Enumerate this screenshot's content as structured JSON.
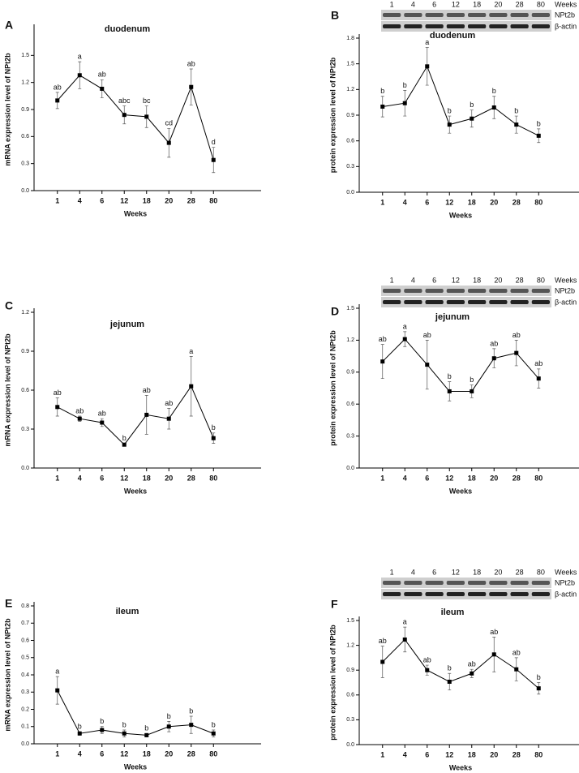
{
  "chart_data": [
    {
      "type": "line",
      "panel": "A",
      "title": "duodenum",
      "x_label": "Weeks",
      "y_label": "mRNA expression level of NPt2b",
      "categories": [
        "1",
        "4",
        "6",
        "12",
        "18",
        "20",
        "28",
        "80"
      ],
      "values": [
        1.0,
        1.28,
        1.13,
        0.84,
        0.82,
        0.53,
        1.15,
        0.34
      ],
      "errors": [
        0.09,
        0.15,
        0.1,
        0.1,
        0.12,
        0.16,
        0.2,
        0.14
      ],
      "annotations": [
        "ab",
        "a",
        "ab",
        "abc",
        "bc",
        "cd",
        "ab",
        "d"
      ],
      "color": "#000000",
      "ylim": [
        0,
        1.8
      ],
      "yticks": [
        {
          "value": 0,
          "label": "0.0"
        },
        0.3,
        0.6,
        0.9,
        1.2,
        1.5
      ]
    },
    {
      "type": "line",
      "panel": "B",
      "title": "duodenum",
      "x_label": "Weeks",
      "y_label": "protein expression level of NPt2b",
      "blot": {
        "lanes": [
          "1",
          "4",
          "6",
          "12",
          "18",
          "20",
          "28",
          "80"
        ],
        "lanes_label": "Weeks",
        "rows": [
          "NPt2b",
          "β-actin"
        ]
      },
      "categories": [
        "1",
        "4",
        "6",
        "12",
        "18",
        "20",
        "28",
        "80"
      ],
      "values": [
        1.0,
        1.04,
        1.47,
        0.79,
        0.86,
        0.99,
        0.79,
        0.66
      ],
      "errors": [
        0.12,
        0.15,
        0.22,
        0.1,
        0.1,
        0.13,
        0.1,
        0.08
      ],
      "annotations": [
        "b",
        "b",
        "a",
        "b",
        "b",
        "b",
        "b",
        "b"
      ],
      "color": "#000000",
      "ylim": [
        0,
        1.8
      ],
      "yticks": [
        {
          "value": 0,
          "label": "0.0"
        },
        0.3,
        0.6,
        0.9,
        1.2,
        1.5,
        1.8
      ]
    },
    {
      "type": "line",
      "panel": "C",
      "title": "jejunum",
      "x_label": "Weeks",
      "y_label": "mRNA expression level of NPt2b",
      "categories": [
        "1",
        "4",
        "6",
        "12",
        "18",
        "20",
        "28",
        "80"
      ],
      "values": [
        0.47,
        0.38,
        0.35,
        0.18,
        0.41,
        0.38,
        0.63,
        0.23
      ],
      "errors": [
        0.07,
        0.02,
        0.03,
        0.01,
        0.15,
        0.08,
        0.23,
        0.04
      ],
      "annotations": [
        "ab",
        "ab",
        "ab",
        "b",
        "ab",
        "ab",
        "a",
        "b"
      ],
      "color": "#000000",
      "ylim": [
        0,
        1.2
      ],
      "yticks": [
        {
          "value": 0,
          "label": "0.0"
        },
        0.3,
        0.6,
        0.9,
        1.2
      ]
    },
    {
      "type": "line",
      "panel": "D",
      "title": "jejunum",
      "x_label": "Weeks",
      "y_label": "protein expression level of NPt2b",
      "blot": {
        "lanes": [
          "1",
          "4",
          "6",
          "12",
          "18",
          "20",
          "28",
          "80"
        ],
        "lanes_label": "Weeks",
        "rows": [
          "NPt2b",
          "β-actin"
        ]
      },
      "categories": [
        "1",
        "4",
        "6",
        "12",
        "18",
        "20",
        "28",
        "80"
      ],
      "values": [
        1.0,
        1.21,
        0.97,
        0.72,
        0.72,
        1.03,
        1.08,
        0.84
      ],
      "errors": [
        0.16,
        0.07,
        0.23,
        0.09,
        0.06,
        0.09,
        0.12,
        0.09
      ],
      "annotations": [
        "ab",
        "a",
        "ab",
        "b",
        "b",
        "ab",
        "ab",
        "ab"
      ],
      "color": "#000000",
      "ylim": [
        0,
        1.5
      ],
      "yticks": [
        {
          "value": 0,
          "label": "0.0"
        },
        0.3,
        0.6,
        0.9,
        1.2,
        1.5
      ]
    },
    {
      "type": "line",
      "panel": "E",
      "title": "ileum",
      "x_label": "Weeks",
      "y_label": "mRNA expression level of NPt2b",
      "categories": [
        "1",
        "4",
        "6",
        "12",
        "18",
        "20",
        "28",
        "80"
      ],
      "values": [
        0.31,
        0.06,
        0.08,
        0.06,
        0.05,
        0.1,
        0.11,
        0.06
      ],
      "errors": [
        0.08,
        0.01,
        0.02,
        0.02,
        0.01,
        0.03,
        0.05,
        0.02
      ],
      "annotations": [
        "a",
        "b",
        "b",
        "b",
        "b",
        "b",
        "b",
        "b"
      ],
      "color": "#000000",
      "ylim": [
        0,
        0.8
      ],
      "yticks": [
        {
          "value": 0,
          "label": "0.0"
        },
        0.1,
        0.2,
        0.3,
        0.4,
        0.5,
        0.6,
        0.7,
        0.8
      ]
    },
    {
      "type": "line",
      "panel": "F",
      "title": "ileum",
      "x_label": "Weeks",
      "y_label": "protein expression level of NPt2b",
      "blot": {
        "lanes": [
          "1",
          "4",
          "6",
          "12",
          "18",
          "20",
          "28",
          "80"
        ],
        "lanes_label": "Weeks",
        "rows": [
          "NPt2b",
          "β-actin"
        ]
      },
      "categories": [
        "1",
        "4",
        "6",
        "12",
        "18",
        "20",
        "28",
        "80"
      ],
      "values": [
        1.0,
        1.27,
        0.9,
        0.76,
        0.86,
        1.09,
        0.91,
        0.68
      ],
      "errors": [
        0.19,
        0.15,
        0.06,
        0.1,
        0.05,
        0.21,
        0.14,
        0.07
      ],
      "annotations": [
        "ab",
        "a",
        "ab",
        "b",
        "ab",
        "ab",
        "ab",
        "b"
      ],
      "color": "#000000",
      "ylim": [
        0,
        1.5
      ],
      "yticks": [
        {
          "value": 0,
          "label": "0.0"
        },
        0.3,
        0.6,
        0.9,
        1.2,
        1.5
      ]
    }
  ]
}
